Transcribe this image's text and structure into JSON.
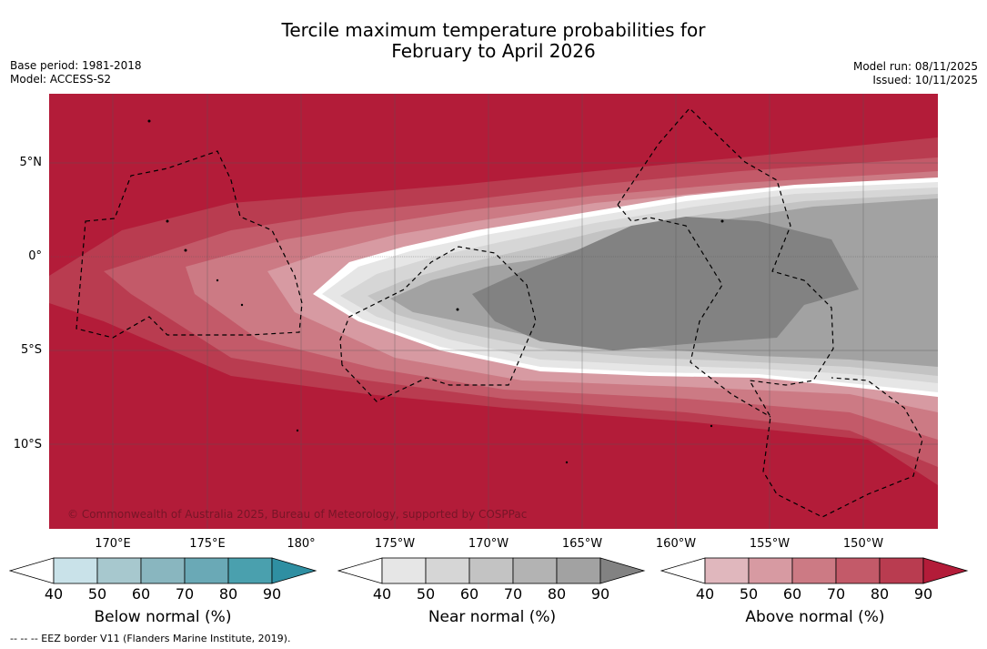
{
  "title": {
    "line1": "Tercile maximum temperature probabilities for",
    "line2": "February to April 2026"
  },
  "meta_left": {
    "base_period": "Base period: 1981-2018",
    "model": "Model: ACCESS-S2"
  },
  "meta_right": {
    "model_run": "Model run: 08/11/2025",
    "issued": "Issued: 10/11/2025"
  },
  "map": {
    "copyright": "© Commonwealth of Australia 2025, Bureau of Meteorology, supported by COSPPac",
    "lat_labels": [
      "5°N",
      "0°",
      "5°S",
      "10°S"
    ],
    "lon_labels": [
      "170°E",
      "175°E",
      "180°",
      "175°W",
      "170°W",
      "165°W",
      "160°W",
      "155°W",
      "150°W"
    ]
  },
  "colorbars": {
    "below": {
      "label": "Below normal (%)",
      "ticks": [
        "40",
        "50",
        "60",
        "70",
        "80",
        "90"
      ],
      "colors": [
        "#ffffff",
        "#c9e2e9",
        "#a7c8ce",
        "#89b6bf",
        "#6aa9b6",
        "#4aa0ae",
        "#2f8fa2"
      ]
    },
    "near": {
      "label": "Near normal (%)",
      "ticks": [
        "40",
        "50",
        "60",
        "70",
        "80",
        "90"
      ],
      "colors": [
        "#ffffff",
        "#e6e6e6",
        "#d6d6d6",
        "#c3c3c3",
        "#b3b3b3",
        "#a2a2a2",
        "#828282"
      ]
    },
    "above": {
      "label": "Above normal (%)",
      "ticks": [
        "40",
        "50",
        "60",
        "70",
        "80",
        "90"
      ],
      "colors": [
        "#ffffff",
        "#e0b7bd",
        "#d79aa2",
        "#cc7a84",
        "#c35a69",
        "#b93c50",
        "#b31c39"
      ]
    }
  },
  "footnote": "--  --  -- EEZ border V11 (Flanders Marine Institute, 2019)."
}
